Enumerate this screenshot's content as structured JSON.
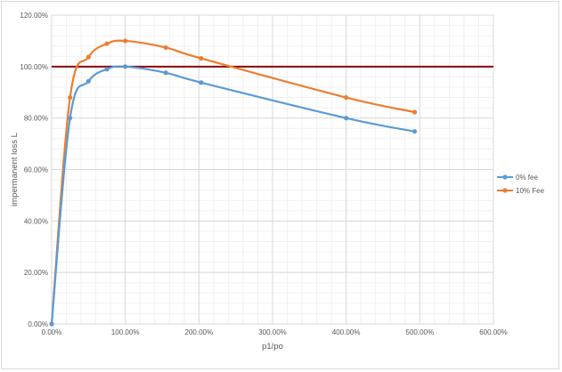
{
  "chart_data": {
    "type": "scatter",
    "xlabel": "p1/po",
    "ylabel": "impermanent loss L",
    "xlim": [
      0,
      6
    ],
    "ylim": [
      0,
      1.2
    ],
    "x_ticks": [
      {
        "value": 0,
        "label": "0.00%"
      },
      {
        "value": 1,
        "label": "100.00%"
      },
      {
        "value": 2,
        "label": "200.00%"
      },
      {
        "value": 3,
        "label": "300.00%"
      },
      {
        "value": 4,
        "label": "400.00%"
      },
      {
        "value": 5,
        "label": "500.00%"
      },
      {
        "value": 6,
        "label": "600.00%"
      }
    ],
    "y_ticks": [
      {
        "value": 0,
        "label": "0.00%"
      },
      {
        "value": 0.2,
        "label": "20.00%"
      },
      {
        "value": 0.4,
        "label": "40.00%"
      },
      {
        "value": 0.6,
        "label": "60.00%"
      },
      {
        "value": 0.8,
        "label": "80.00%"
      },
      {
        "value": 1.0,
        "label": "100.00%"
      },
      {
        "value": 1.2,
        "label": "120.00%"
      }
    ],
    "grid": true,
    "legend_position": "right",
    "reference_line": {
      "y": 1.0,
      "color": "#8b0000"
    },
    "series": [
      {
        "name": "0% fee",
        "color": "#5b9bd5",
        "x": [
          0,
          0.25,
          0.5,
          0.75,
          1.0,
          1.55,
          2.03,
          4.0,
          4.93
        ],
        "y": [
          0,
          0.8,
          0.943,
          0.99,
          1.0,
          0.976,
          0.938,
          0.8,
          0.748
        ]
      },
      {
        "name": "10% Fee",
        "color": "#ed7d31",
        "x": [
          0,
          0.25,
          0.5,
          0.75,
          1.0,
          1.55,
          2.03,
          4.0,
          4.93
        ],
        "y": [
          0,
          0.88,
          1.037,
          1.089,
          1.1,
          1.074,
          1.032,
          0.88,
          0.823
        ]
      }
    ]
  }
}
